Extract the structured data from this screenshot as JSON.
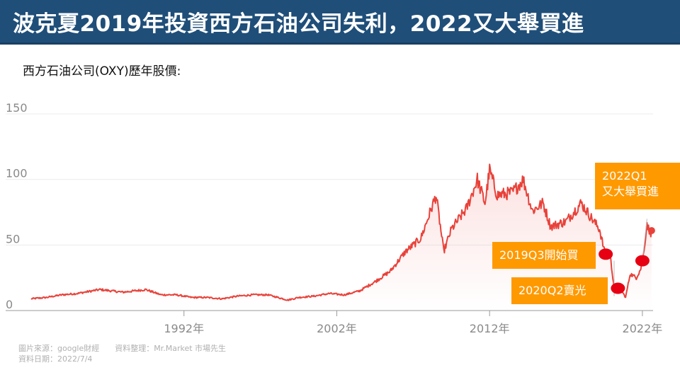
{
  "slide": {
    "title": "波克夏2019年投資西方石油公司失利，2022又大舉買進",
    "subtitle": "西方石油公司(OXY)歷年股價:"
  },
  "chart_data": {
    "type": "line",
    "title": "西方石油公司(OXY)歷年股價",
    "xlabel": "",
    "ylabel": "",
    "xlim": [
      1982.0,
      2022.7
    ],
    "ylim": [
      0,
      150
    ],
    "y_ticks": [
      0,
      50,
      100,
      150
    ],
    "y_tick_labels": [
      "0",
      "50",
      "100",
      "150"
    ],
    "x_ticks": [
      1992,
      2002,
      2012,
      2022
    ],
    "x_tick_labels": [
      "1992年",
      "2002年",
      "2012年",
      "2022年"
    ],
    "grid": true,
    "series": [
      {
        "name": "OXY",
        "color": "#e8423a",
        "points": [
          [
            1982.0,
            9
          ],
          [
            1983.0,
            10
          ],
          [
            1984.0,
            12
          ],
          [
            1985.0,
            13
          ],
          [
            1986.5,
            16
          ],
          [
            1988.0,
            14
          ],
          [
            1989.5,
            16
          ],
          [
            1990.5,
            12
          ],
          [
            1991.5,
            12
          ],
          [
            1992.5,
            10
          ],
          [
            1993.5,
            10
          ],
          [
            1994.5,
            9
          ],
          [
            1995.5,
            11
          ],
          [
            1996.5,
            12
          ],
          [
            1997.5,
            12
          ],
          [
            1998.8,
            8
          ],
          [
            1999.5,
            10
          ],
          [
            2000.5,
            11
          ],
          [
            2001.5,
            13
          ],
          [
            2002.5,
            12
          ],
          [
            2003.5,
            15
          ],
          [
            2004.5,
            22
          ],
          [
            2005.5,
            30
          ],
          [
            2006.5,
            45
          ],
          [
            2007.5,
            55
          ],
          [
            2008.5,
            88
          ],
          [
            2009.0,
            45
          ],
          [
            2009.5,
            62
          ],
          [
            2010.5,
            78
          ],
          [
            2011.2,
            100
          ],
          [
            2011.7,
            82
          ],
          [
            2012.0,
            107
          ],
          [
            2012.5,
            88
          ],
          [
            2013.5,
            90
          ],
          [
            2014.2,
            100
          ],
          [
            2014.8,
            76
          ],
          [
            2015.5,
            82
          ],
          [
            2016.0,
            64
          ],
          [
            2017.0,
            68
          ],
          [
            2018.0,
            82
          ],
          [
            2018.7,
            70
          ],
          [
            2019.2,
            62
          ],
          [
            2019.5,
            46
          ],
          [
            2019.9,
            41
          ],
          [
            2020.2,
            13
          ],
          [
            2020.6,
            16
          ],
          [
            2020.9,
            10
          ],
          [
            2021.2,
            28
          ],
          [
            2021.6,
            25
          ],
          [
            2021.9,
            32
          ],
          [
            2022.1,
            45
          ],
          [
            2022.3,
            67
          ],
          [
            2022.5,
            58
          ],
          [
            2022.6,
            61
          ]
        ]
      }
    ],
    "trade_markers": [
      {
        "label": "2019Q3開始買",
        "x": 2019.6,
        "y": 43
      },
      {
        "label": "2020Q2賣光",
        "x": 2020.4,
        "y": 17
      },
      {
        "label": "2022Q1\n又大舉買進",
        "x": 2022.0,
        "y": 38
      }
    ]
  },
  "callouts": {
    "buy": "2019Q3開始買",
    "sell": "2020Q2賣光",
    "rebuy_line1": "2022Q1",
    "rebuy_line2": "又大舉買進"
  },
  "footer": {
    "source": "圖片來源：google財經　　資料整理：Mr.Market  市場先生",
    "date": "資料日期：2022/7/4"
  },
  "colors": {
    "title_bg": "#1f4e79",
    "line": "#e8423a",
    "marker": "#e60012",
    "callout_bg": "#ff9900"
  }
}
